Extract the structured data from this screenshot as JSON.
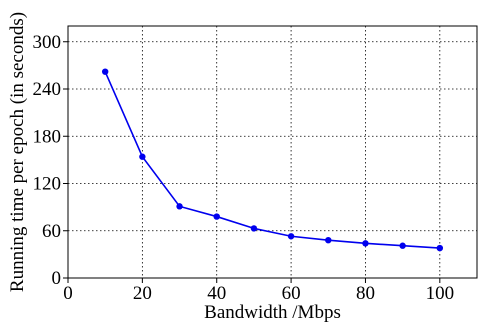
{
  "chart_data": {
    "type": "line",
    "xlabel": "Bandwidth /Mbps",
    "ylabel": "Running time per epoch (in seconds)",
    "xlim": [
      0,
      110
    ],
    "ylim": [
      0,
      320
    ],
    "xticks": [
      0,
      20,
      40,
      60,
      80,
      100
    ],
    "yticks": [
      0,
      60,
      120,
      180,
      240,
      300
    ],
    "grid": true,
    "series": [
      {
        "color": "#0000ee",
        "x": [
          10,
          20,
          30,
          40,
          50,
          60,
          70,
          80,
          90,
          100
        ],
        "y": [
          262,
          154,
          91,
          78,
          63,
          53,
          48,
          44,
          41,
          38
        ]
      }
    ]
  }
}
